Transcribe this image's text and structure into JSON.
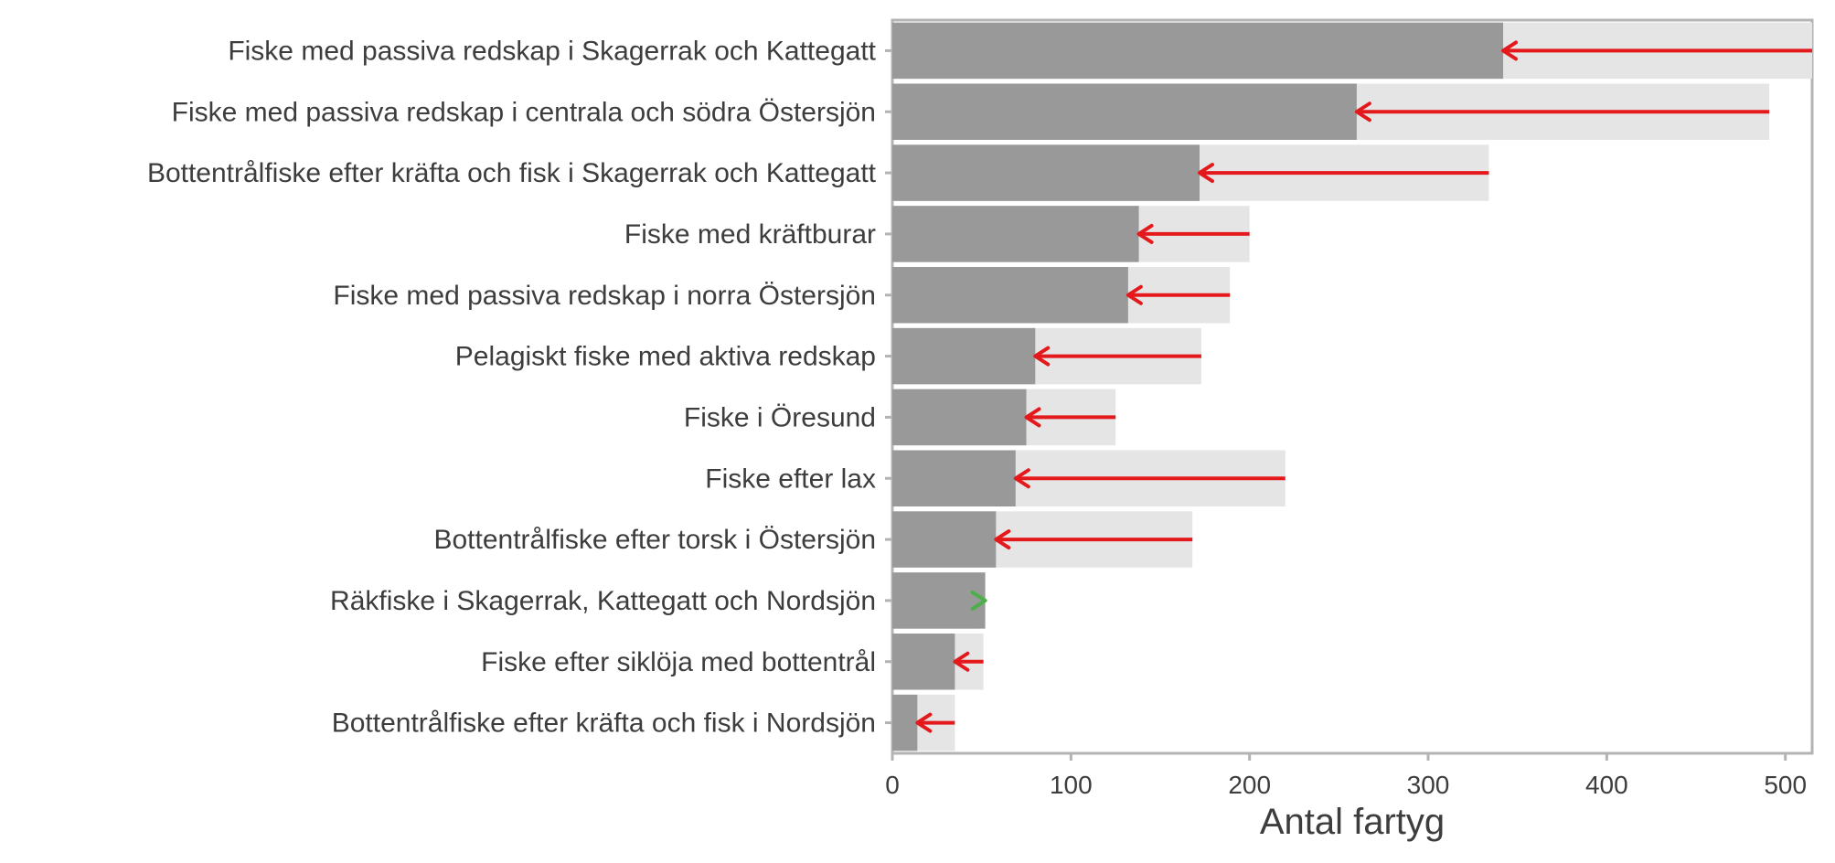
{
  "chart_data": {
    "type": "bar",
    "orientation": "horizontal",
    "xlabel": "Antal fartyg",
    "ylabel": "",
    "xlim": [
      0,
      515
    ],
    "xticks": [
      0,
      100,
      200,
      300,
      400,
      500
    ],
    "grid": false,
    "legend": "none",
    "categories": [
      "Fiske med passiva redskap i Skagerrak och Kattegatt",
      "Fiske med passiva redskap i centrala och södra Östersjön",
      "Bottentrålfiske efter kräfta och fisk i Skagerrak och Kattegatt",
      "Fiske med kräftburar",
      "Fiske med passiva redskap i norra Östersjön",
      "Pelagiskt fiske med aktiva redskap",
      "Fiske i Öresund",
      "Fiske efter lax",
      "Bottentrålfiske efter torsk i Östersjön",
      "Räkfiske i Skagerrak, Kattegatt och Nordsjön",
      "Fiske efter siklöja med bottentrål",
      "Bottentrålfiske efter kräfta och fisk i Nordsjön"
    ],
    "series": [
      {
        "values": [
          515,
          491,
          334,
          200,
          189,
          173,
          125,
          220,
          168,
          48,
          51,
          35
        ]
      },
      {
        "values": [
          342,
          260,
          172,
          138,
          132,
          80,
          75,
          69,
          58,
          52,
          35,
          14
        ]
      }
    ],
    "arrows": [
      {
        "from": 515,
        "to": 342
      },
      {
        "from": 491,
        "to": 260
      },
      {
        "from": 334,
        "to": 172
      },
      {
        "from": 200,
        "to": 138
      },
      {
        "from": 189,
        "to": 132
      },
      {
        "from": 173,
        "to": 80
      },
      {
        "from": 125,
        "to": 75
      },
      {
        "from": 220,
        "to": 69
      },
      {
        "from": 168,
        "to": 58
      },
      {
        "from": 48,
        "to": 52
      },
      {
        "from": 51,
        "to": 35
      },
      {
        "from": 35,
        "to": 14
      }
    ],
    "colors": {
      "background_bar": "#e5e5e5",
      "foreground_bar": "#999999",
      "decrease_arrow": "#e3191c",
      "increase_arrow": "#4daf4a",
      "frame": "#b3b3b3",
      "text": "#3d3d3d"
    }
  }
}
